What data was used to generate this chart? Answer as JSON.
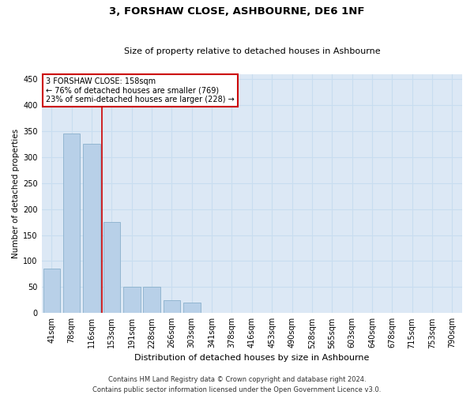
{
  "title": "3, FORSHAW CLOSE, ASHBOURNE, DE6 1NF",
  "subtitle": "Size of property relative to detached houses in Ashbourne",
  "xlabel": "Distribution of detached houses by size in Ashbourne",
  "ylabel": "Number of detached properties",
  "categories": [
    "41sqm",
    "78sqm",
    "116sqm",
    "153sqm",
    "191sqm",
    "228sqm",
    "266sqm",
    "303sqm",
    "341sqm",
    "378sqm",
    "416sqm",
    "453sqm",
    "490sqm",
    "528sqm",
    "565sqm",
    "603sqm",
    "640sqm",
    "678sqm",
    "715sqm",
    "753sqm",
    "790sqm"
  ],
  "values": [
    85,
    345,
    325,
    175,
    50,
    50,
    25,
    20,
    0,
    0,
    1,
    0,
    1,
    0,
    0,
    0,
    0,
    0,
    0,
    0,
    1
  ],
  "bar_color": "#b8d0e8",
  "bar_edge_color": "#8ab0cc",
  "grid_color": "#c8ddf0",
  "bg_color": "#dce8f5",
  "red_line_color": "#cc0000",
  "red_line_x": 2.5,
  "annotation_box_color": "#ffffff",
  "annotation_box_edge": "#cc0000",
  "property_label": "3 FORSHAW CLOSE: 158sqm",
  "annotation_line1": "← 76% of detached houses are smaller (769)",
  "annotation_line2": "23% of semi-detached houses are larger (228) →",
  "ylim": [
    0,
    460
  ],
  "yticks": [
    0,
    50,
    100,
    150,
    200,
    250,
    300,
    350,
    400,
    450
  ],
  "title_fontsize": 9.5,
  "subtitle_fontsize": 8,
  "ylabel_fontsize": 7.5,
  "xlabel_fontsize": 8,
  "tick_fontsize": 7,
  "ann_fontsize": 7,
  "footer1": "Contains HM Land Registry data © Crown copyright and database right 2024.",
  "footer2": "Contains public sector information licensed under the Open Government Licence v3.0.",
  "footer_fontsize": 6
}
